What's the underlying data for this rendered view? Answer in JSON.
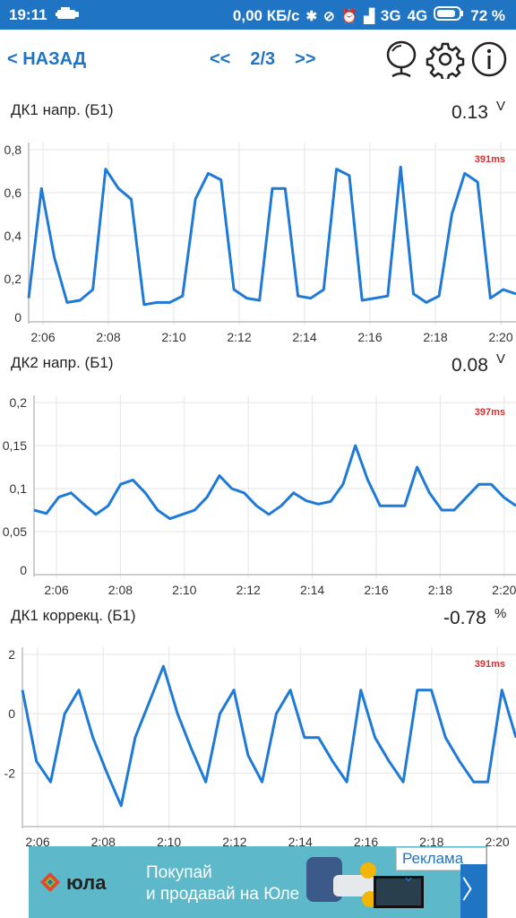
{
  "status_bar": {
    "time": "19:11",
    "speed": "0,00 КБ/с",
    "net1": "3G",
    "net2": "4G",
    "battery": "72 %"
  },
  "nav": {
    "back_label": "< НАЗАД",
    "prev_label": "<<",
    "page": "2/3",
    "next_label": ">>",
    "icons": [
      "mirror-icon",
      "gear-icon",
      "info-icon"
    ]
  },
  "panels": [
    {
      "title": "ДК1 напр. (Б1)",
      "value": "0.13",
      "unit": "V",
      "chart_data": {
        "type": "line",
        "timing": "391ms",
        "y_ticks": [
          "0",
          "0,2",
          "0,4",
          "0,6",
          "0,8"
        ],
        "ylim": [
          0,
          0.8
        ],
        "x_ticks": [
          "2:06",
          "2:08",
          "2:10",
          "2:12",
          "2:14",
          "2:16",
          "2:18",
          "2:20"
        ],
        "line_color": "#1e7ad6",
        "series": [
          {
            "values": [
              0.11,
              0.62,
              0.3,
              0.09,
              0.1,
              0.15,
              0.71,
              0.62,
              0.57,
              0.08,
              0.09,
              0.09,
              0.12,
              0.57,
              0.69,
              0.66,
              0.15,
              0.11,
              0.1,
              0.62,
              0.62,
              0.12,
              0.11,
              0.15,
              0.71,
              0.68,
              0.1,
              0.11,
              0.12,
              0.72,
              0.13,
              0.09,
              0.12,
              0.5,
              0.69,
              0.65,
              0.11,
              0.15,
              0.13
            ]
          }
        ]
      }
    },
    {
      "title": "ДК2 напр. (Б1)",
      "value": "0.08",
      "unit": "V",
      "chart_data": {
        "type": "line",
        "timing": "397ms",
        "y_ticks": [
          "0",
          "0,05",
          "0,1",
          "0,15",
          "0,2"
        ],
        "ylim": [
          0,
          0.2
        ],
        "x_ticks": [
          "2:06",
          "2:08",
          "2:10",
          "2:12",
          "2:14",
          "2:16",
          "2:18",
          "2:20"
        ],
        "line_color": "#1e7ad6",
        "series": [
          {
            "values": [
              0.075,
              0.071,
              0.09,
              0.095,
              0.082,
              0.07,
              0.08,
              0.105,
              0.11,
              0.095,
              0.075,
              0.065,
              0.07,
              0.075,
              0.09,
              0.115,
              0.1,
              0.095,
              0.08,
              0.07,
              0.08,
              0.095,
              0.086,
              0.082,
              0.085,
              0.105,
              0.15,
              0.11,
              0.08,
              0.08,
              0.08,
              0.125,
              0.095,
              0.075,
              0.075,
              0.09,
              0.105,
              0.105,
              0.09,
              0.08
            ]
          }
        ]
      }
    },
    {
      "title": "ДК1 коррекц. (Б1)",
      "value": "-0.78",
      "unit": "%",
      "chart_data": {
        "type": "line",
        "timing": "391ms",
        "y_ticks": [
          "-2",
          "0",
          "2"
        ],
        "ylim": [
          -3.8,
          2
        ],
        "x_ticks": [
          "2:06",
          "2:08",
          "2:10",
          "2:12",
          "2:14",
          "2:16",
          "2:18",
          "2:20"
        ],
        "line_color": "#1e7ad6",
        "series": [
          {
            "values": [
              0.8,
              -1.6,
              -2.3,
              0.0,
              0.8,
              -0.8,
              -2.0,
              -3.1,
              -0.8,
              0.4,
              1.6,
              0.0,
              -1.2,
              -2.3,
              0.0,
              0.8,
              -1.4,
              -2.3,
              0.0,
              0.8,
              -0.8,
              -0.8,
              -1.6,
              -2.3,
              0.8,
              -0.8,
              -1.6,
              -2.3,
              0.8,
              0.8,
              -0.8,
              -1.6,
              -2.3,
              -2.3,
              0.8,
              -0.8
            ]
          }
        ]
      }
    }
  ],
  "ad": {
    "brand": "юла",
    "line1": "Покупай",
    "line2": "и продавай на Юле",
    "label": "Реклама ⌄",
    "chevron": "〉"
  }
}
